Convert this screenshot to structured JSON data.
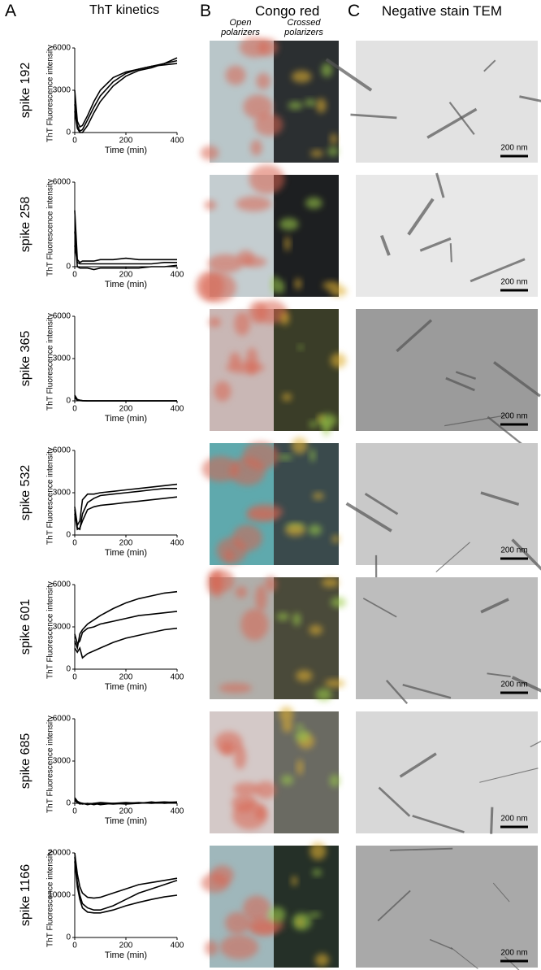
{
  "panels": [
    {
      "letter": "A",
      "title": "ThT kinetics"
    },
    {
      "letter": "B",
      "title": "Congo red",
      "sub": [
        "Open polarizers",
        "Crossed polarizers"
      ]
    },
    {
      "letter": "C",
      "title": "Negative stain TEM"
    }
  ],
  "chart_data": [
    {
      "type": "line",
      "row_label": "spike 192",
      "ylabel": "ThT Fluorescence intensity",
      "xlabel": "Time (min)",
      "color": "#000000",
      "x": [
        0,
        10,
        20,
        30,
        50,
        75,
        100,
        150,
        200,
        250,
        300,
        350,
        400
      ],
      "series": [
        {
          "values": [
            2000,
            500,
            100,
            200,
            900,
            1800,
            2600,
            3600,
            4200,
            4500,
            4700,
            4900,
            5300
          ]
        },
        {
          "values": [
            1500,
            300,
            0,
            0,
            500,
            1400,
            2200,
            3300,
            4000,
            4400,
            4600,
            4900,
            5100
          ]
        },
        {
          "values": [
            3000,
            800,
            400,
            500,
            1200,
            2200,
            3000,
            3900,
            4300,
            4500,
            4700,
            4800,
            4900
          ]
        }
      ],
      "xlim": [
        0,
        400
      ],
      "ylim": [
        0,
        6000
      ],
      "xticks": [
        0,
        200,
        400
      ],
      "yticks": [
        0,
        3000,
        6000
      ]
    },
    {
      "type": "line",
      "row_label": "spike 258",
      "ylabel": "ThT Fluorescence intensity",
      "xlabel": "Time (min)",
      "color": "#000000",
      "x": [
        0,
        10,
        20,
        30,
        50,
        75,
        100,
        150,
        200,
        250,
        300,
        350,
        400
      ],
      "series": [
        {
          "values": [
            4000,
            500,
            300,
            400,
            400,
            400,
            500,
            500,
            600,
            500,
            500,
            500,
            500
          ]
        },
        {
          "values": [
            2500,
            0,
            -100,
            -100,
            -100,
            -200,
            -100,
            -100,
            -100,
            -100,
            0,
            0,
            100
          ]
        },
        {
          "values": [
            1500,
            300,
            200,
            200,
            200,
            200,
            200,
            200,
            200,
            200,
            200,
            300,
            300
          ]
        }
      ],
      "xlim": [
        0,
        400
      ],
      "ylim": [
        0,
        6000
      ],
      "xticks": [
        0,
        200,
        400
      ],
      "yticks": [
        0,
        6000
      ]
    },
    {
      "type": "line",
      "row_label": "spike 365",
      "ylabel": "ThT Fluorescence intensity",
      "xlabel": "Time (min)",
      "color": "#000000",
      "x": [
        0,
        10,
        20,
        30,
        50,
        75,
        100,
        150,
        200,
        250,
        300,
        350,
        400
      ],
      "series": [
        {
          "values": [
            400,
            100,
            50,
            20,
            0,
            0,
            0,
            0,
            0,
            0,
            0,
            0,
            0
          ]
        },
        {
          "values": [
            300,
            80,
            30,
            10,
            0,
            0,
            0,
            0,
            0,
            0,
            0,
            0,
            0
          ]
        },
        {
          "values": [
            200,
            50,
            20,
            0,
            0,
            0,
            0,
            0,
            0,
            0,
            0,
            0,
            0
          ]
        }
      ],
      "xlim": [
        0,
        400
      ],
      "ylim": [
        0,
        6000
      ],
      "xticks": [
        0,
        200,
        400
      ],
      "yticks": [
        0,
        3000,
        6000
      ]
    },
    {
      "type": "line",
      "row_label": "spike 532",
      "ylabel": "ThT Fluorescence intensity",
      "xlabel": "Time (min)",
      "color": "#000000",
      "x": [
        0,
        10,
        20,
        30,
        50,
        75,
        100,
        150,
        200,
        250,
        300,
        350,
        400
      ],
      "series": [
        {
          "values": [
            2000,
            700,
            1000,
            2500,
            2900,
            2900,
            3000,
            3100,
            3200,
            3300,
            3400,
            3500,
            3600
          ]
        },
        {
          "values": [
            1800,
            500,
            400,
            1500,
            2300,
            2600,
            2800,
            2900,
            3000,
            3100,
            3200,
            3300,
            3300
          ]
        },
        {
          "values": [
            1500,
            400,
            500,
            1000,
            1800,
            2000,
            2100,
            2200,
            2300,
            2400,
            2500,
            2600,
            2700
          ]
        }
      ],
      "xlim": [
        0,
        400
      ],
      "ylim": [
        0,
        6000
      ],
      "xticks": [
        0,
        200,
        400
      ],
      "yticks": [
        0,
        3000,
        6000
      ]
    },
    {
      "type": "line",
      "row_label": "spike 601",
      "ylabel": "ThT Fluorescence intensity",
      "xlabel": "Time (min)",
      "color": "#000000",
      "x": [
        0,
        10,
        20,
        30,
        50,
        75,
        100,
        150,
        200,
        250,
        300,
        350,
        400
      ],
      "series": [
        {
          "values": [
            2000,
            1500,
            2500,
            2800,
            3200,
            3500,
            3800,
            4300,
            4700,
            5000,
            5200,
            5400,
            5500
          ]
        },
        {
          "values": [
            2500,
            1800,
            2000,
            2600,
            2900,
            3000,
            3200,
            3400,
            3600,
            3800,
            3900,
            4000,
            4100
          ]
        },
        {
          "values": [
            1500,
            1200,
            1500,
            800,
            1100,
            1300,
            1500,
            1900,
            2200,
            2400,
            2600,
            2800,
            2900
          ]
        }
      ],
      "xlim": [
        0,
        400
      ],
      "ylim": [
        0,
        6000
      ],
      "xticks": [
        0,
        200,
        400
      ],
      "yticks": [
        0,
        3000,
        6000
      ]
    },
    {
      "type": "line",
      "row_label": "spike 685",
      "ylabel": "ThT Fluorescence intensity",
      "xlabel": "Time (min)",
      "color": "#000000",
      "x": [
        0,
        10,
        20,
        30,
        50,
        75,
        100,
        150,
        200,
        250,
        300,
        350,
        400
      ],
      "series": [
        {
          "values": [
            400,
            150,
            50,
            0,
            -50,
            0,
            -100,
            0,
            50,
            0,
            50,
            100,
            50
          ]
        },
        {
          "values": [
            300,
            100,
            0,
            -50,
            0,
            -100,
            0,
            -50,
            0,
            50,
            0,
            50,
            100
          ]
        },
        {
          "values": [
            200,
            50,
            -50,
            0,
            -100,
            0,
            50,
            0,
            -50,
            0,
            100,
            0,
            50
          ]
        }
      ],
      "xlim": [
        0,
        400
      ],
      "ylim": [
        0,
        6000
      ],
      "xticks": [
        0,
        200,
        400
      ],
      "yticks": [
        0,
        3000,
        6000
      ]
    },
    {
      "type": "line",
      "row_label": "spike 1166",
      "ylabel": "ThT Fluorescence intensity",
      "xlabel": "Time (min)",
      "color": "#000000",
      "x": [
        0,
        10,
        20,
        30,
        50,
        75,
        100,
        150,
        200,
        250,
        300,
        350,
        400
      ],
      "series": [
        {
          "values": [
            20000,
            15000,
            12000,
            10500,
            9500,
            9300,
            9500,
            10500,
            11500,
            12500,
            13000,
            13500,
            14000
          ]
        },
        {
          "values": [
            19000,
            13000,
            10000,
            8000,
            7000,
            6500,
            6500,
            7500,
            9000,
            10500,
            11500,
            12500,
            13500
          ]
        },
        {
          "values": [
            18000,
            12000,
            9000,
            7000,
            6000,
            5800,
            5800,
            6500,
            7500,
            8300,
            9000,
            9600,
            10000
          ]
        }
      ],
      "xlim": [
        0,
        400
      ],
      "ylim": [
        0,
        20000
      ],
      "xticks": [
        0,
        200,
        400
      ],
      "yticks": [
        0,
        10000,
        20000
      ]
    }
  ],
  "scale_bars": [
    "200 nm",
    "200 nm",
    "200 nm",
    "200 nm",
    "200 nm",
    "200 nm",
    "200 nm"
  ]
}
